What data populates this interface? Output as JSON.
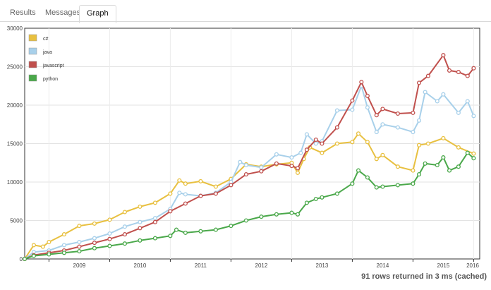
{
  "tabs": [
    {
      "label": "Results",
      "active": false
    },
    {
      "label": "Messages",
      "active": false
    },
    {
      "label": "Graph",
      "active": true
    }
  ],
  "status_text": "91 rows returned in 3 ms (cached)",
  "chart_data": {
    "type": "line",
    "x_ticks": [
      "2009",
      "2010",
      "2011",
      "2012",
      "2013",
      "2014",
      "2015",
      "2016"
    ],
    "y_ticks": [
      "0",
      "5000",
      "10000",
      "15000",
      "20000",
      "25000",
      "30000"
    ],
    "ylim": [
      0,
      30000
    ],
    "xlim": [
      2008.6,
      2016.1
    ],
    "grid": true,
    "legend_position": "top-left",
    "series": [
      {
        "name": "c#",
        "color": "#e8c040",
        "points": [
          [
            2008.6,
            0
          ],
          [
            2008.75,
            1800
          ],
          [
            2008.9,
            1600
          ],
          [
            2009.0,
            2200
          ],
          [
            2009.25,
            3200
          ],
          [
            2009.5,
            4300
          ],
          [
            2009.75,
            4600
          ],
          [
            2010.0,
            5100
          ],
          [
            2010.25,
            6100
          ],
          [
            2010.5,
            6800
          ],
          [
            2010.75,
            7300
          ],
          [
            2011.0,
            8500
          ],
          [
            2011.15,
            10200
          ],
          [
            2011.25,
            9800
          ],
          [
            2011.5,
            10100
          ],
          [
            2011.75,
            9400
          ],
          [
            2012.0,
            10400
          ],
          [
            2012.25,
            12300
          ],
          [
            2012.5,
            12000
          ],
          [
            2012.75,
            12300
          ],
          [
            2013.0,
            12500
          ],
          [
            2013.1,
            11200
          ],
          [
            2013.2,
            13000
          ],
          [
            2013.3,
            14500
          ],
          [
            2013.5,
            13800
          ],
          [
            2013.75,
            15000
          ],
          [
            2014.0,
            15200
          ],
          [
            2014.1,
            16300
          ],
          [
            2014.25,
            15200
          ],
          [
            2014.4,
            13000
          ],
          [
            2014.5,
            13500
          ],
          [
            2014.75,
            12000
          ],
          [
            2015.0,
            11500
          ],
          [
            2015.1,
            14800
          ],
          [
            2015.25,
            15000
          ],
          [
            2015.5,
            15700
          ],
          [
            2015.75,
            14500
          ],
          [
            2016.0,
            13700
          ]
        ]
      },
      {
        "name": "java",
        "color": "#a8d0ea",
        "points": [
          [
            2008.6,
            0
          ],
          [
            2008.75,
            900
          ],
          [
            2009.0,
            1100
          ],
          [
            2009.25,
            1800
          ],
          [
            2009.5,
            2200
          ],
          [
            2009.75,
            2700
          ],
          [
            2010.0,
            3300
          ],
          [
            2010.25,
            4200
          ],
          [
            2010.5,
            4800
          ],
          [
            2010.75,
            5300
          ],
          [
            2011.0,
            6500
          ],
          [
            2011.15,
            8600
          ],
          [
            2011.25,
            8400
          ],
          [
            2011.5,
            8200
          ],
          [
            2011.75,
            8600
          ],
          [
            2012.0,
            10000
          ],
          [
            2012.15,
            12600
          ],
          [
            2012.25,
            12200
          ],
          [
            2012.5,
            11900
          ],
          [
            2012.75,
            13600
          ],
          [
            2013.0,
            13200
          ],
          [
            2013.15,
            13800
          ],
          [
            2013.25,
            16200
          ],
          [
            2013.4,
            15000
          ],
          [
            2013.5,
            15300
          ],
          [
            2013.75,
            19300
          ],
          [
            2014.0,
            19400
          ],
          [
            2014.15,
            22500
          ],
          [
            2014.25,
            19700
          ],
          [
            2014.4,
            16500
          ],
          [
            2014.5,
            17500
          ],
          [
            2014.75,
            17100
          ],
          [
            2015.0,
            16500
          ],
          [
            2015.1,
            18000
          ],
          [
            2015.2,
            21700
          ],
          [
            2015.4,
            20500
          ],
          [
            2015.5,
            21400
          ],
          [
            2015.75,
            19000
          ],
          [
            2015.9,
            20500
          ],
          [
            2016.0,
            18600
          ]
        ]
      },
      {
        "name": "javascript",
        "color": "#c0504d",
        "points": [
          [
            2008.6,
            0
          ],
          [
            2008.75,
            500
          ],
          [
            2009.0,
            800
          ],
          [
            2009.25,
            1100
          ],
          [
            2009.5,
            1600
          ],
          [
            2009.75,
            2100
          ],
          [
            2010.0,
            2600
          ],
          [
            2010.25,
            3200
          ],
          [
            2010.5,
            4000
          ],
          [
            2010.75,
            4800
          ],
          [
            2011.0,
            6200
          ],
          [
            2011.25,
            7200
          ],
          [
            2011.5,
            8200
          ],
          [
            2011.75,
            8500
          ],
          [
            2012.0,
            9600
          ],
          [
            2012.25,
            11000
          ],
          [
            2012.5,
            11400
          ],
          [
            2012.75,
            12400
          ],
          [
            2013.0,
            12100
          ],
          [
            2013.1,
            11800
          ],
          [
            2013.25,
            14200
          ],
          [
            2013.4,
            15500
          ],
          [
            2013.5,
            15000
          ],
          [
            2013.75,
            17100
          ],
          [
            2014.0,
            20600
          ],
          [
            2014.15,
            23000
          ],
          [
            2014.25,
            21200
          ],
          [
            2014.4,
            18700
          ],
          [
            2014.5,
            19500
          ],
          [
            2014.75,
            18900
          ],
          [
            2015.0,
            19000
          ],
          [
            2015.1,
            22900
          ],
          [
            2015.25,
            23800
          ],
          [
            2015.5,
            26500
          ],
          [
            2015.6,
            24500
          ],
          [
            2015.75,
            24300
          ],
          [
            2015.9,
            23800
          ],
          [
            2016.0,
            24800
          ]
        ]
      },
      {
        "name": "python",
        "color": "#4aa84a",
        "points": [
          [
            2008.6,
            0
          ],
          [
            2008.75,
            400
          ],
          [
            2009.0,
            600
          ],
          [
            2009.25,
            800
          ],
          [
            2009.5,
            1000
          ],
          [
            2009.75,
            1400
          ],
          [
            2010.0,
            1700
          ],
          [
            2010.25,
            2000
          ],
          [
            2010.5,
            2400
          ],
          [
            2010.75,
            2700
          ],
          [
            2011.0,
            3000
          ],
          [
            2011.1,
            3800
          ],
          [
            2011.25,
            3400
          ],
          [
            2011.5,
            3600
          ],
          [
            2011.75,
            3800
          ],
          [
            2012.0,
            4300
          ],
          [
            2012.25,
            5000
          ],
          [
            2012.5,
            5500
          ],
          [
            2012.75,
            5800
          ],
          [
            2013.0,
            6000
          ],
          [
            2013.1,
            5800
          ],
          [
            2013.25,
            7300
          ],
          [
            2013.4,
            7800
          ],
          [
            2013.5,
            8000
          ],
          [
            2013.75,
            8500
          ],
          [
            2014.0,
            9800
          ],
          [
            2014.1,
            11500
          ],
          [
            2014.25,
            10600
          ],
          [
            2014.4,
            9300
          ],
          [
            2014.5,
            9400
          ],
          [
            2014.75,
            9600
          ],
          [
            2015.0,
            9800
          ],
          [
            2015.1,
            11000
          ],
          [
            2015.2,
            12400
          ],
          [
            2015.4,
            12200
          ],
          [
            2015.5,
            13200
          ],
          [
            2015.6,
            11500
          ],
          [
            2015.75,
            12000
          ],
          [
            2015.9,
            13800
          ],
          [
            2016.0,
            13100
          ]
        ]
      }
    ]
  }
}
